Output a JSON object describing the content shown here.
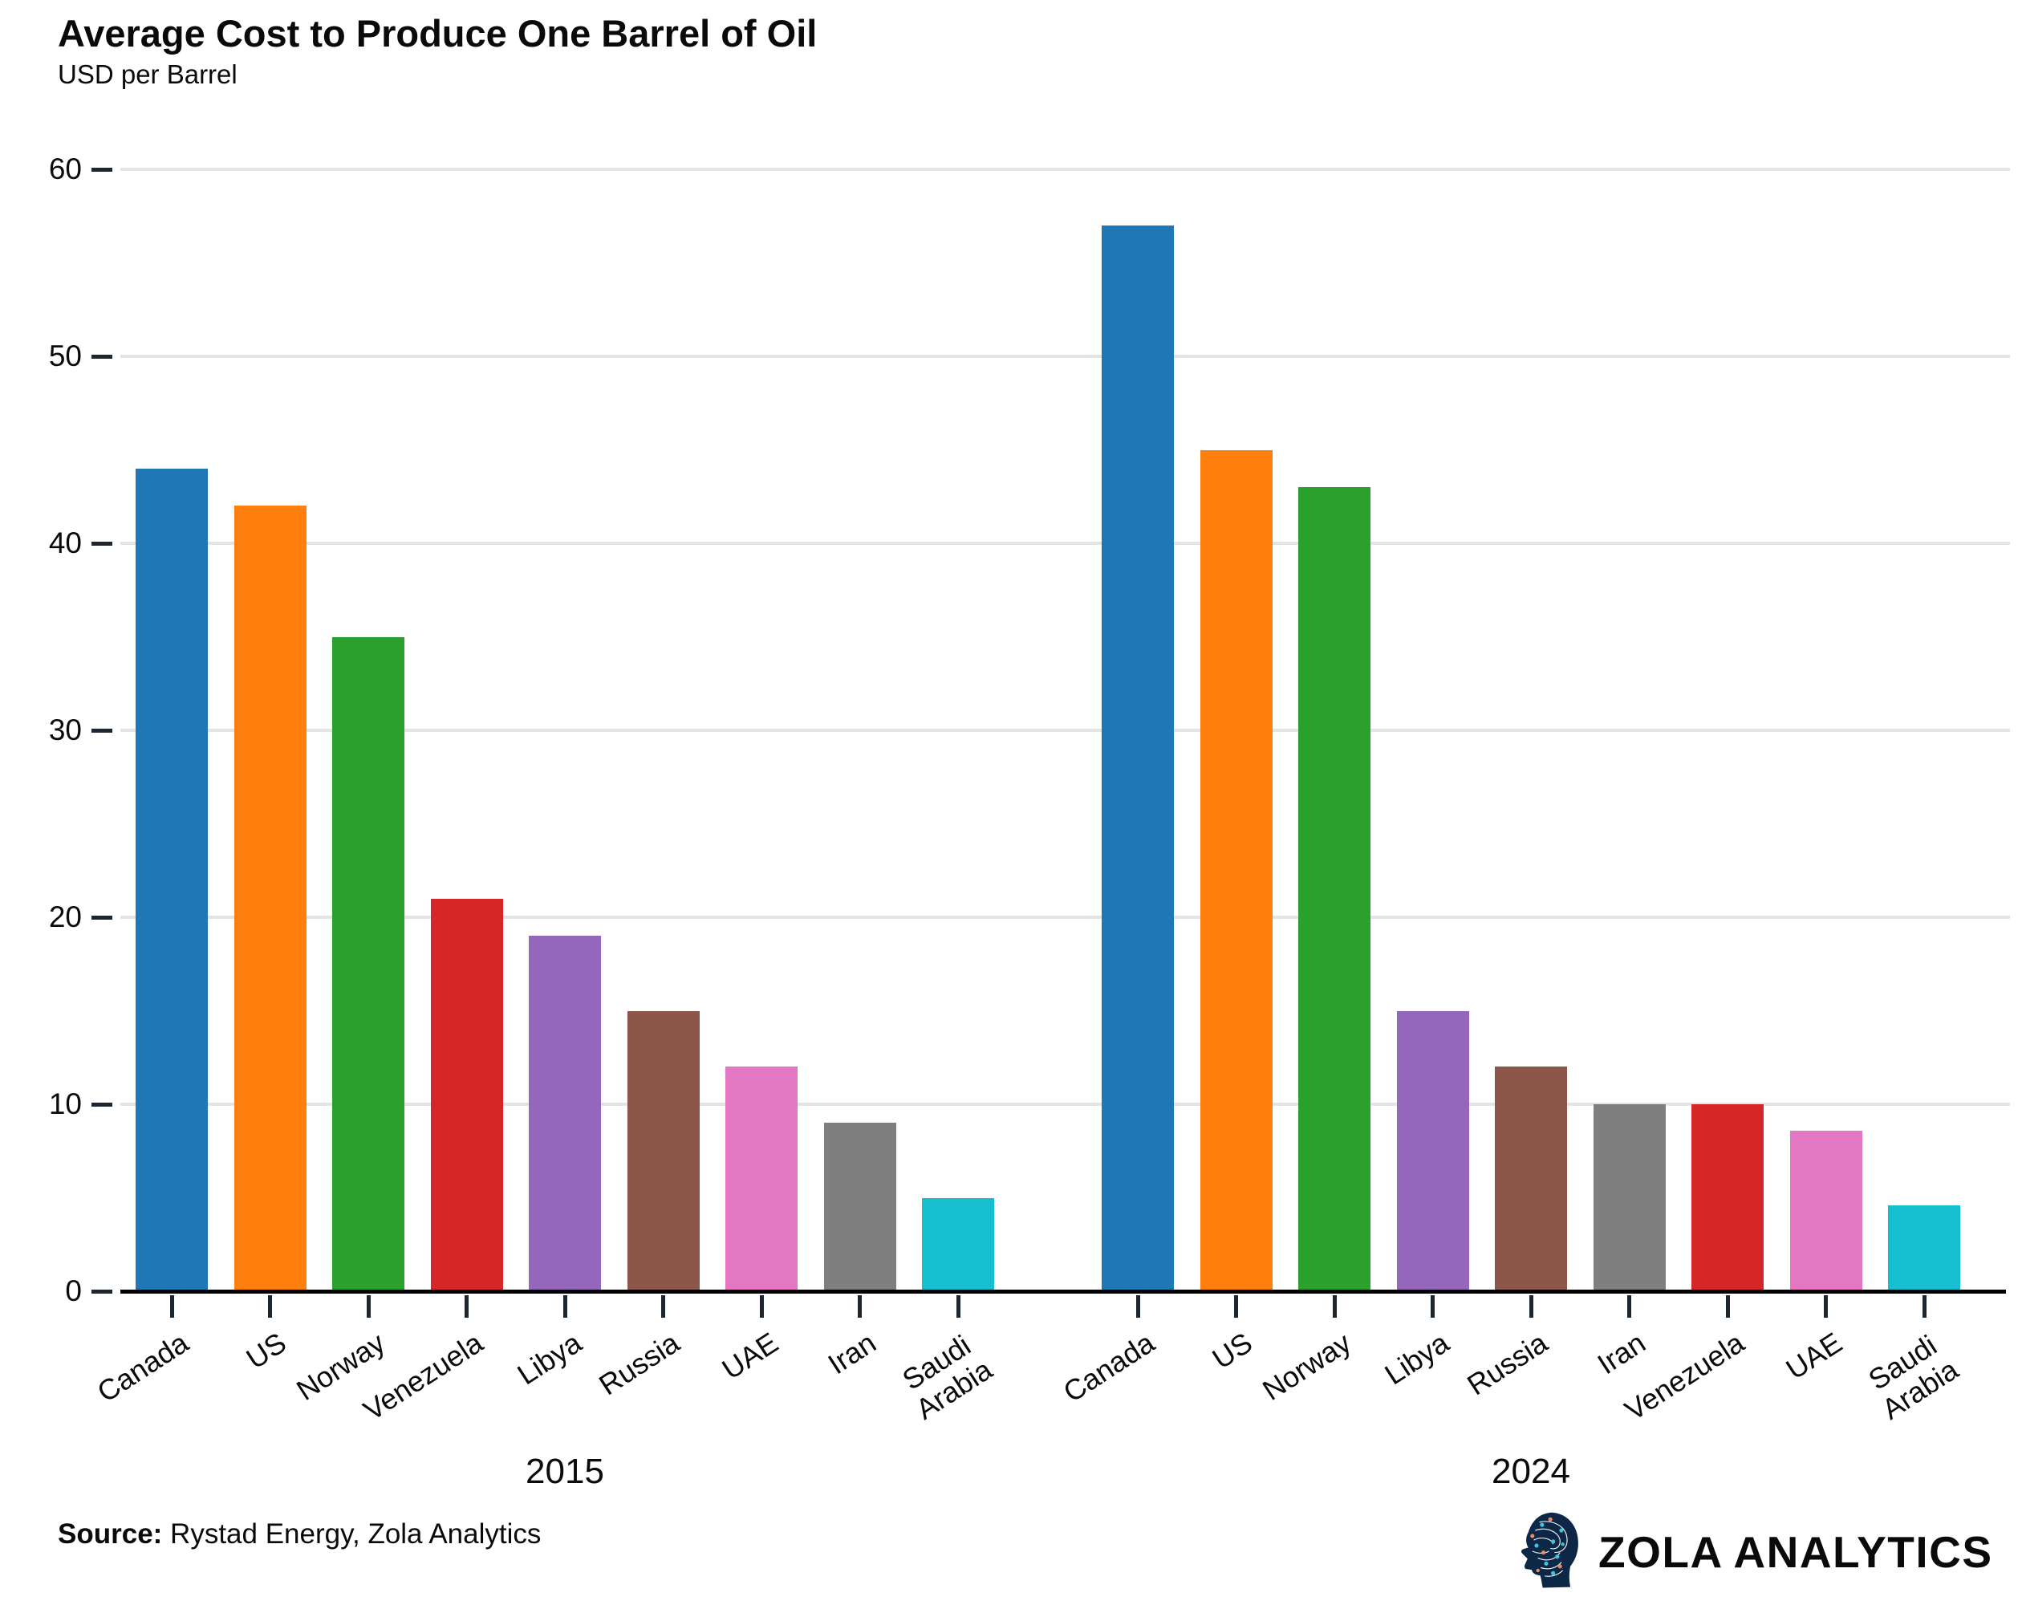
{
  "title": "Average Cost to Produce One Barrel of Oil",
  "subtitle": "USD per Barrel",
  "footer": {
    "source_label": "Source:",
    "source_text": " Rystad Energy, Zola Analytics",
    "brand": "ZOLA ANALYTICS"
  },
  "colors": {
    "axis": "#000000",
    "tick": "#1b2631",
    "gridline": "#e4e4e4",
    "logo_navy": "#0d2847",
    "logo_cyan": "#3fc6dc",
    "logo_orange": "#e58d62"
  },
  "chart_data": {
    "type": "bar",
    "title": "Average Cost to Produce One Barrel of Oil",
    "subtitle": "USD per Barrel",
    "ylabel": "USD per Barrel",
    "xlabel": "",
    "ylim": [
      0,
      60
    ],
    "y_ticks": [
      0,
      10,
      20,
      30,
      40,
      50,
      60
    ],
    "grid": "horizontal",
    "legend": "none",
    "groups": [
      {
        "label": "2015",
        "bars": [
          {
            "category": "Canada",
            "value": 44,
            "color": "#1f77b4"
          },
          {
            "category": "US",
            "value": 42,
            "color": "#ff7f0e"
          },
          {
            "category": "Norway",
            "value": 35,
            "color": "#2ca02c"
          },
          {
            "category": "Venezuela",
            "value": 21,
            "color": "#d62728"
          },
          {
            "category": "Libya",
            "value": 19,
            "color": "#9467bd"
          },
          {
            "category": "Russia",
            "value": 15,
            "color": "#8c564b"
          },
          {
            "category": "UAE",
            "value": 12,
            "color": "#e377c2"
          },
          {
            "category": "Iran",
            "value": 9,
            "color": "#7f7f7f"
          },
          {
            "category": "Saudi\nArabia",
            "value": 5,
            "color": "#17becf"
          }
        ]
      },
      {
        "label": "2024",
        "bars": [
          {
            "category": "Canada",
            "value": 57,
            "color": "#1f77b4"
          },
          {
            "category": "US",
            "value": 45,
            "color": "#ff7f0e"
          },
          {
            "category": "Norway",
            "value": 43,
            "color": "#2ca02c"
          },
          {
            "category": "Libya",
            "value": 15,
            "color": "#9467bd"
          },
          {
            "category": "Russia",
            "value": 12,
            "color": "#8c564b"
          },
          {
            "category": "Iran",
            "value": 10,
            "color": "#7f7f7f"
          },
          {
            "category": "Venezuela",
            "value": 10,
            "color": "#d62728"
          },
          {
            "category": "UAE",
            "value": 8.6,
            "color": "#e377c2"
          },
          {
            "category": "Saudi\nArabia",
            "value": 4.6,
            "color": "#17becf"
          }
        ]
      }
    ]
  }
}
